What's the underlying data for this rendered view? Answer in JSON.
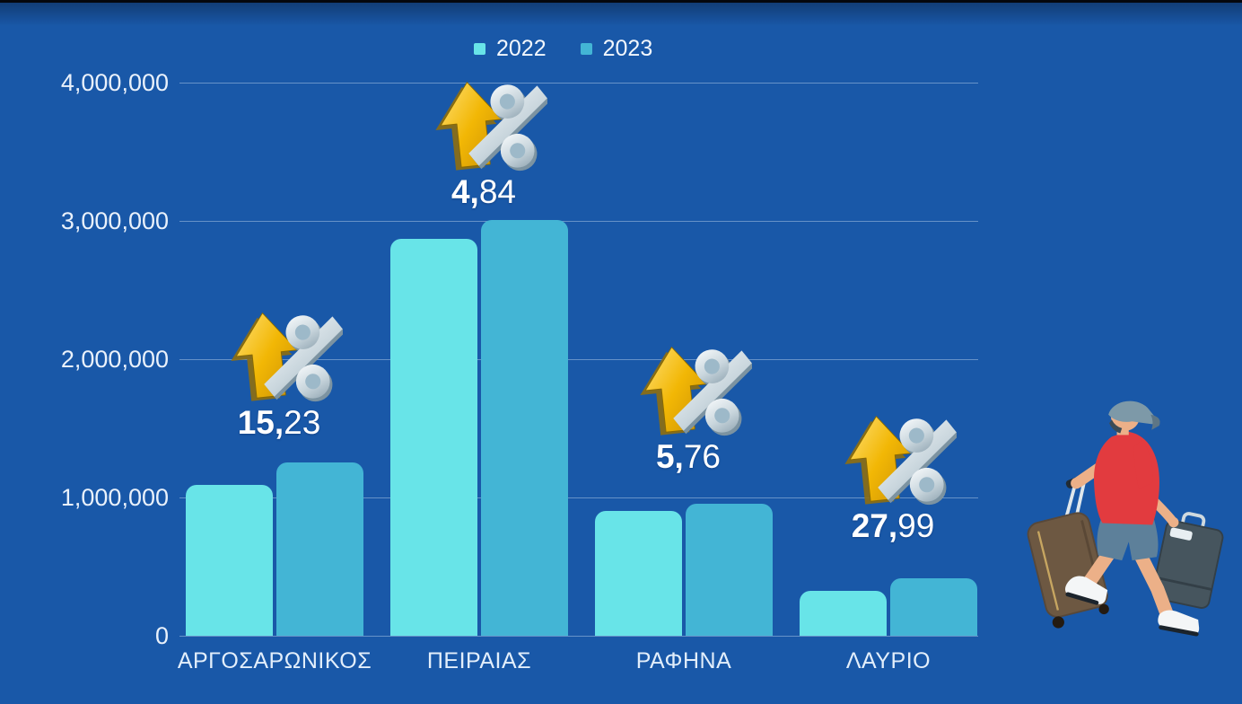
{
  "background": {
    "color": "#1958a8",
    "top_strip_color": "#05070d"
  },
  "legend": {
    "items": [
      {
        "label": "2022",
        "color": "#68e4e8"
      },
      {
        "label": "2023",
        "color": "#43b5d5"
      }
    ]
  },
  "chart_data": {
    "type": "bar",
    "title": "",
    "xlabel": "",
    "ylabel": "",
    "categories": [
      "ΑΡΓΟΣΑΡΩΝΙΚΟΣ",
      "ΠΕΙΡΑΙΑΣ",
      "ΡΑΦΗΝΑ",
      "ΛΑΥΡΙΟ"
    ],
    "series": [
      {
        "name": "2022",
        "color": "#68e4e8",
        "values": [
          1090000,
          2870000,
          905000,
          325000
        ]
      },
      {
        "name": "2023",
        "color": "#43b5d5",
        "values": [
          1256000,
          3009000,
          957000,
          416000
        ]
      }
    ],
    "ylim": [
      0,
      4000000
    ],
    "yticks": [
      "0",
      "1,000,000",
      "2,000,000",
      "3,000,000",
      "4,000,000"
    ],
    "grid": true,
    "legend_position": "top-center",
    "annotations": [
      {
        "category": "ΑΡΓΟΣΑΡΩΝΙΚΟΣ",
        "percent_change": "15,23",
        "bold": "15,",
        "regular": "23",
        "icon": "arrow-up-percent-icon"
      },
      {
        "category": "ΠΕΙΡΑΙΑΣ",
        "percent_change": "4,84",
        "bold": "4,",
        "regular": "84",
        "icon": "arrow-up-percent-icon"
      },
      {
        "category": "ΡΑΦΗΝΑ",
        "percent_change": "5,76",
        "bold": "5,",
        "regular": "76",
        "icon": "arrow-up-percent-icon"
      },
      {
        "category": "ΛΑΥΡΙΟ",
        "percent_change": "27,99",
        "bold": "27,",
        "regular": "99",
        "icon": "arrow-up-percent-icon"
      }
    ]
  },
  "illustration": {
    "name": "traveler-with-luggage-illustration"
  }
}
